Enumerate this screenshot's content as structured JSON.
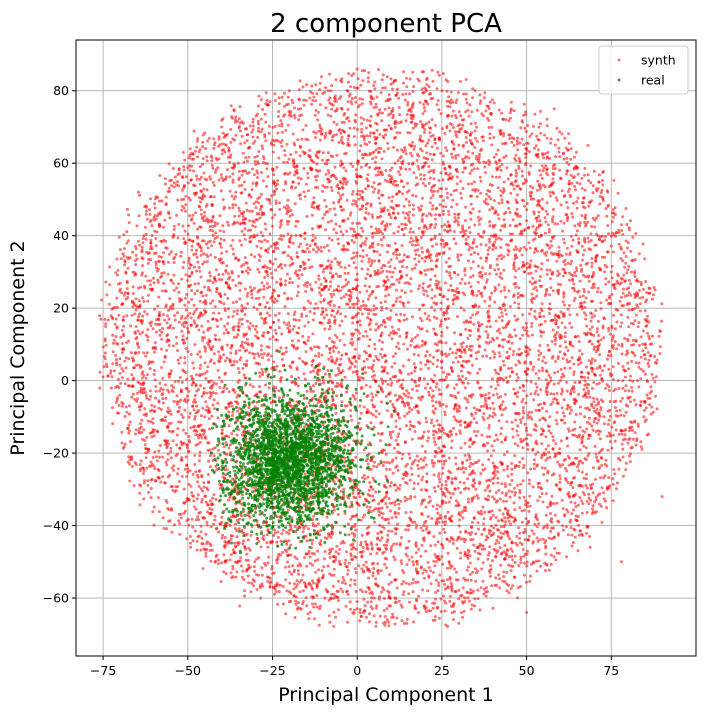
{
  "chart_data": {
    "type": "scatter",
    "title": "2 component PCA",
    "xlabel": "Principal Component 1",
    "ylabel": "Principal Component 2",
    "xlim": [
      -83,
      100
    ],
    "ylim": [
      -76,
      94
    ],
    "xticks": [
      -75,
      -50,
      -25,
      0,
      25,
      50,
      75
    ],
    "yticks": [
      -60,
      -40,
      -20,
      0,
      20,
      40,
      60,
      80
    ],
    "xtick_labels": [
      "−75",
      "−50",
      "−25",
      "0",
      "25",
      "50",
      "75"
    ],
    "ytick_labels": [
      "−60",
      "−40",
      "−20",
      "0",
      "20",
      "40",
      "60",
      "80"
    ],
    "grid": true,
    "legend_position": "top-right",
    "series": [
      {
        "name": "synth",
        "color": "#ff0000",
        "alpha": 0.55,
        "approx_points": 9000,
        "x_range": [
          -76,
          90
        ],
        "y_range": [
          -68,
          86
        ],
        "center": [
          8,
          5
        ],
        "sample_points": [
          [
            -75,
            1
          ],
          [
            -72,
            20
          ],
          [
            -60,
            45
          ],
          [
            -40,
            70
          ],
          [
            -20,
            80
          ],
          [
            0,
            86
          ],
          [
            25,
            80
          ],
          [
            50,
            55
          ],
          [
            75,
            30
          ],
          [
            88,
            5
          ],
          [
            90,
            -32
          ],
          [
            78,
            -50
          ],
          [
            50,
            -64
          ],
          [
            30,
            -67
          ],
          [
            5,
            -60
          ],
          [
            -27,
            -51
          ],
          [
            -58,
            -28
          ],
          [
            -45,
            -10
          ],
          [
            -10,
            30
          ],
          [
            20,
            10
          ],
          [
            40,
            -10
          ],
          [
            60,
            0
          ],
          [
            35,
            -30
          ],
          [
            10,
            45
          ]
        ]
      },
      {
        "name": "real",
        "color": "#008000",
        "alpha": 0.75,
        "approx_points": 2500,
        "x_range": [
          -43,
          13
        ],
        "y_range": [
          -48,
          8
        ],
        "center": [
          -20,
          -22
        ],
        "sample_points": [
          [
            -43,
            -20
          ],
          [
            -38,
            -10
          ],
          [
            -30,
            2
          ],
          [
            -23,
            8
          ],
          [
            -12,
            4
          ],
          [
            -2,
            -5
          ],
          [
            5,
            -15
          ],
          [
            12,
            -33
          ],
          [
            5,
            -38
          ],
          [
            -5,
            -42
          ],
          [
            -14,
            -46
          ],
          [
            -22,
            -40
          ],
          [
            -30,
            -35
          ],
          [
            -38,
            -30
          ],
          [
            -20,
            -22
          ],
          [
            -16,
            -25
          ],
          [
            -25,
            -18
          ],
          [
            -18,
            -30
          ]
        ]
      }
    ]
  }
}
